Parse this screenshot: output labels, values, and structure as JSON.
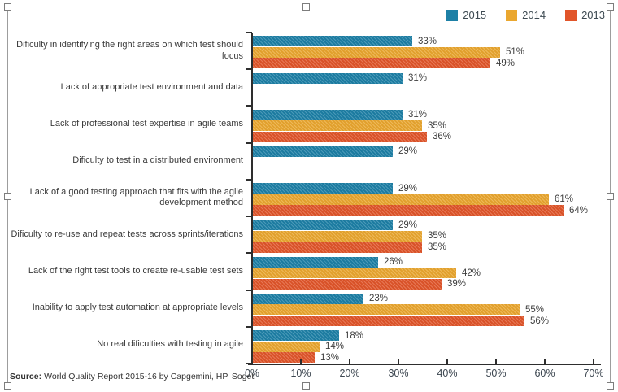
{
  "chart_data": {
    "type": "bar",
    "orientation": "horizontal",
    "title": "",
    "xlabel": "",
    "ylabel": "",
    "categories": [
      "Dificulty in identifying the right areas on which test should focus",
      "Lack of appropriate test environment and data",
      "Lack of professional test expertise in agile teams",
      "Dificulty to test in a distributed environment",
      "Lack of a good testing approach that fits with the agile development method",
      "Dificulty to re-use and repeat tests across sprints/iterations",
      "Lack of the right test tools to create re-usable test sets",
      "Inability to apply test automation at appropriate levels",
      "No real dificulties with testing in agile"
    ],
    "series": [
      {
        "name": "2015",
        "color": "#1d80a6",
        "values": [
          33,
          31,
          31,
          29,
          29,
          29,
          26,
          23,
          18
        ]
      },
      {
        "name": "2014",
        "color": "#eaa72f",
        "values": [
          51,
          null,
          35,
          null,
          61,
          35,
          42,
          55,
          14
        ]
      },
      {
        "name": "2013",
        "color": "#e1552a",
        "values": [
          49,
          null,
          36,
          null,
          64,
          35,
          39,
          56,
          13
        ]
      }
    ],
    "value_suffix": "%",
    "xlim": [
      0,
      70
    ],
    "x_ticks": [
      "0%",
      "10%",
      "20%",
      "30%",
      "40%",
      "50%",
      "60%",
      "70%"
    ],
    "grid": false,
    "legend_position": "top-right",
    "bar_texture": "diagonal-hatch"
  },
  "source": {
    "prefix": "Source:",
    "text": "World Quality Report 2015-16 by Capgemini, HP, Sogeti"
  }
}
